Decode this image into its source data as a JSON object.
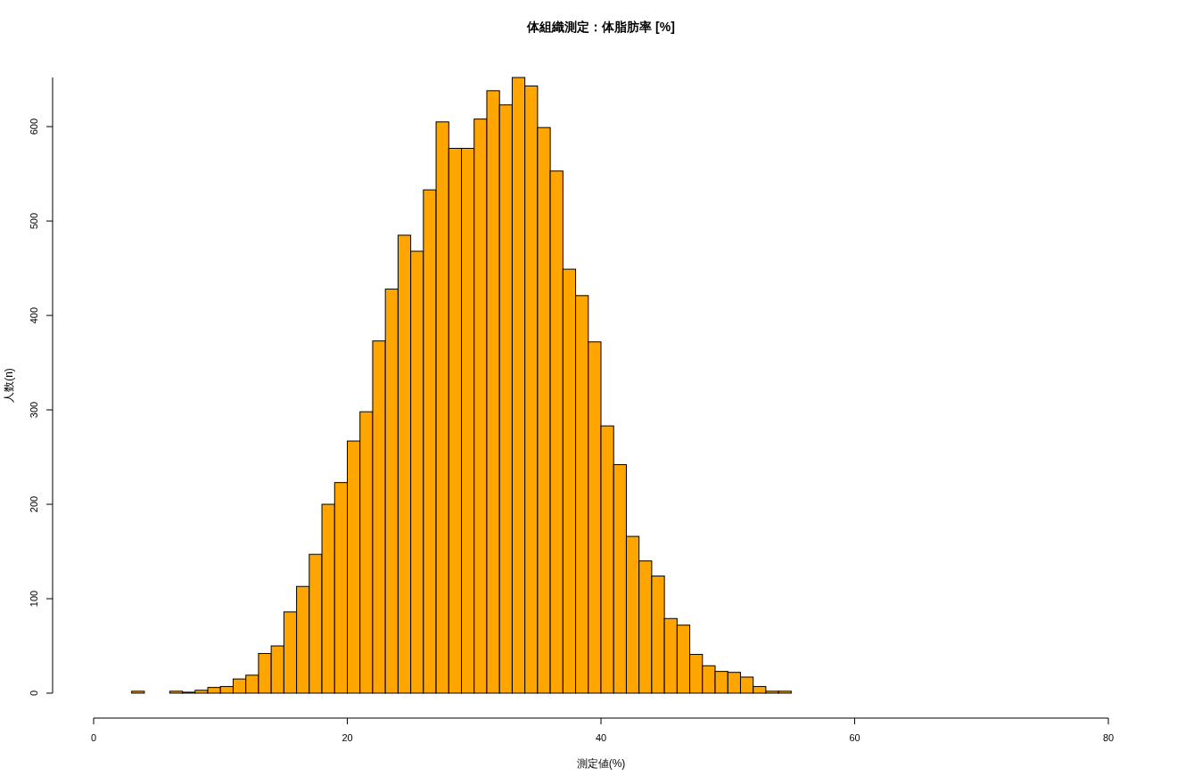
{
  "chart_data": {
    "type": "histogram",
    "title": "体組織測定：体脂肪率 [%]",
    "xlabel": "測定値(%)",
    "ylabel": "人数(n)",
    "bins": [
      3,
      4,
      5,
      6,
      7,
      8,
      9,
      10,
      11,
      12,
      13,
      14,
      15,
      16,
      17,
      18,
      19,
      20,
      21,
      22,
      23,
      24,
      25,
      26,
      27,
      28,
      29,
      30,
      31,
      32,
      33,
      34,
      35,
      36,
      37,
      38,
      39,
      40,
      41,
      42,
      43,
      44,
      45,
      46,
      47,
      48,
      49,
      50,
      51,
      52,
      53,
      54,
      55
    ],
    "values": [
      2,
      0,
      0,
      2,
      1,
      3,
      6,
      7,
      15,
      19,
      42,
      50,
      86,
      113,
      147,
      200,
      223,
      267,
      298,
      373,
      428,
      485,
      468,
      533,
      605,
      577,
      577,
      608,
      638,
      623,
      652,
      643,
      599,
      553,
      449,
      421,
      372,
      283,
      242,
      166,
      140,
      124,
      79,
      72,
      41,
      29,
      23,
      22,
      17,
      7,
      2,
      2
    ],
    "color": "#ffa500",
    "xlim": [
      0,
      80
    ],
    "ylim": [
      0,
      652
    ],
    "xticks": [
      0,
      20,
      40,
      60,
      80
    ],
    "yticks": [
      0,
      100,
      200,
      300,
      400,
      500,
      600
    ]
  }
}
